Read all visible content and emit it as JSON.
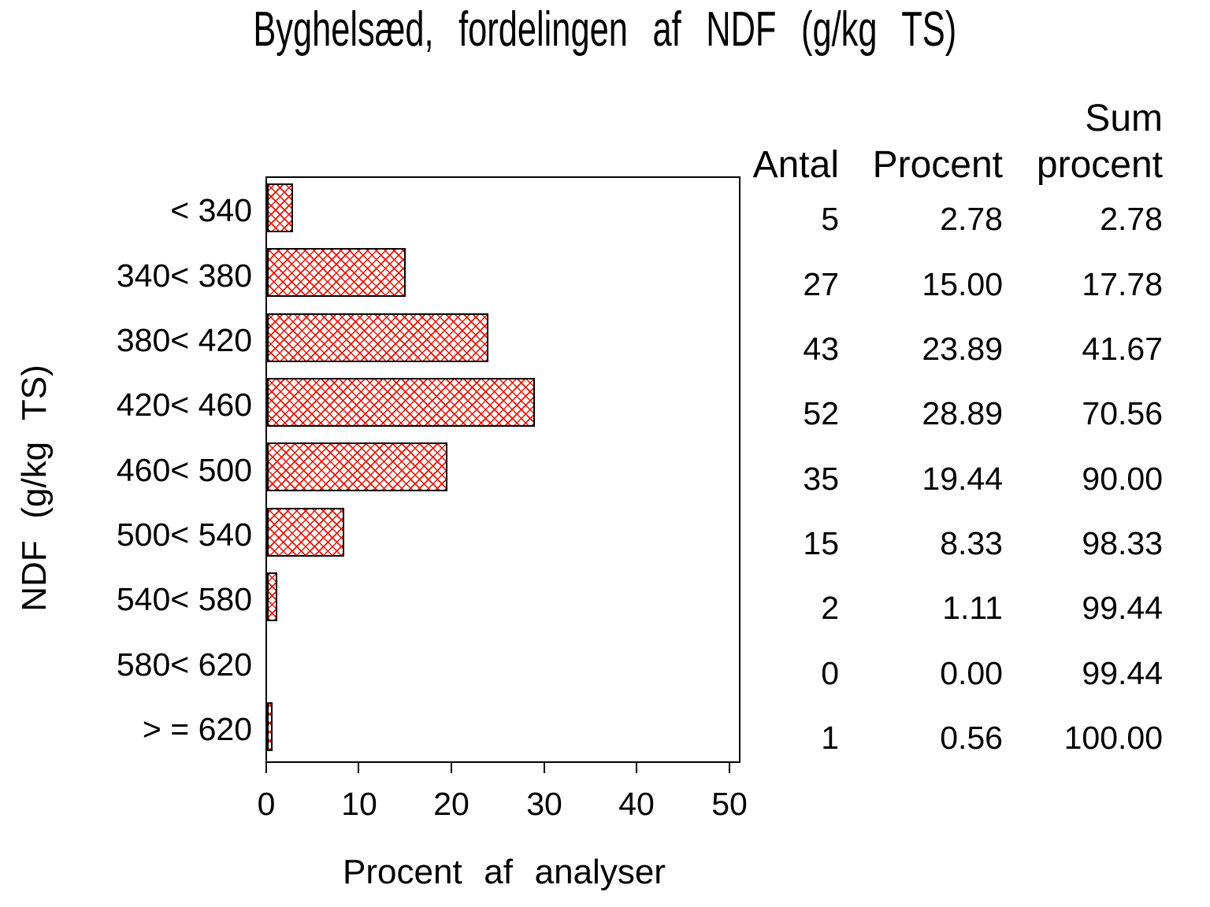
{
  "chart_data": {
    "type": "bar",
    "orientation": "horizontal",
    "title": "Byghelsæd, fordelingen af NDF (g/kg TS)",
    "xlabel": "Procent af analyser",
    "ylabel": "NDF (g/kg TS)",
    "categories": [
      "< 340",
      "340< 380",
      "380< 420",
      "420< 460",
      "460< 500",
      "500< 540",
      "540< 580",
      "580< 620",
      "> = 620"
    ],
    "values": [
      2.78,
      15.0,
      23.89,
      28.89,
      19.44,
      8.33,
      1.11,
      0.0,
      0.56
    ],
    "xticks": [
      "0",
      "10",
      "20",
      "30",
      "40",
      "50"
    ],
    "xlim": [
      0,
      50
    ],
    "grid": false,
    "legend": "none",
    "bar_hatch": "diagonal-crosshatch",
    "bar_hatch_color": "#ee1100",
    "bar_border_color": "#000000"
  },
  "table": {
    "headers": {
      "antal": "Antal",
      "procent": "Procent",
      "sum_line1": "Sum",
      "sum_line2": "procent"
    },
    "rows": [
      {
        "antal": "5",
        "procent": "2.78",
        "sum": "2.78"
      },
      {
        "antal": "27",
        "procent": "15.00",
        "sum": "17.78"
      },
      {
        "antal": "43",
        "procent": "23.89",
        "sum": "41.67"
      },
      {
        "antal": "52",
        "procent": "28.89",
        "sum": "70.56"
      },
      {
        "antal": "35",
        "procent": "19.44",
        "sum": "90.00"
      },
      {
        "antal": "15",
        "procent": "8.33",
        "sum": "98.33"
      },
      {
        "antal": "2",
        "procent": "1.11",
        "sum": "99.44"
      },
      {
        "antal": "0",
        "procent": "0.00",
        "sum": "99.44"
      },
      {
        "antal": "1",
        "procent": "0.56",
        "sum": "100.00"
      }
    ]
  }
}
